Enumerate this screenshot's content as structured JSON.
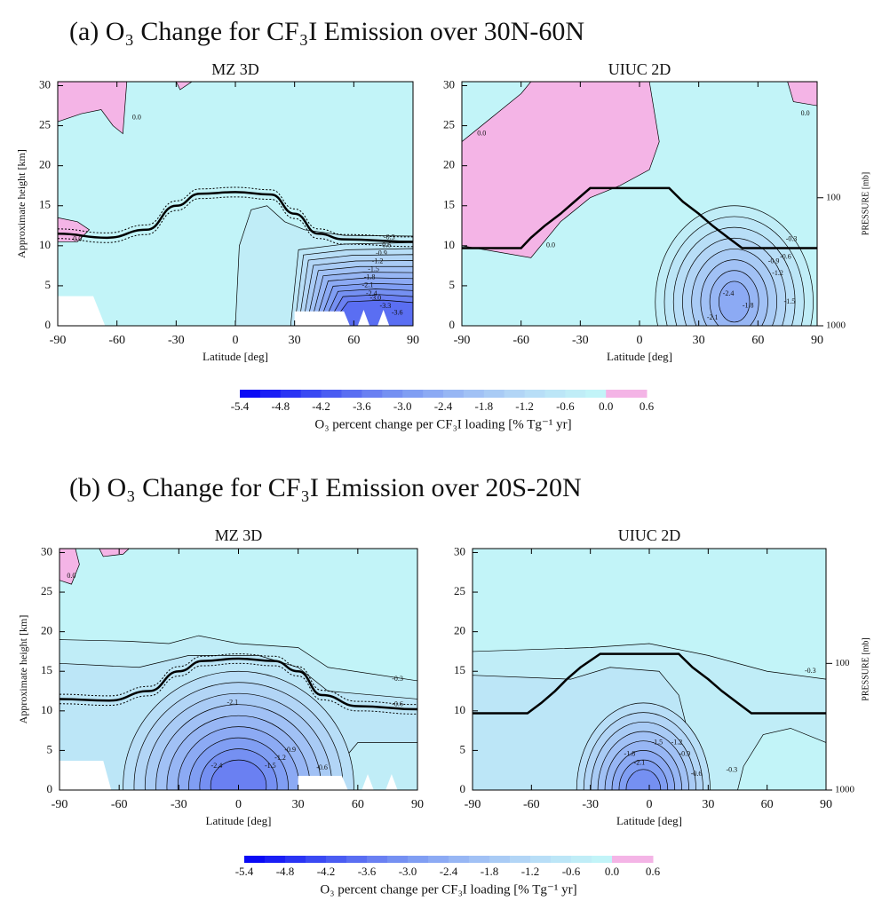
{
  "sections": [
    {
      "title": "(a) O₃ Change for CF₃I Emission over 30N-60N",
      "colorbar": {
        "lim": [
          -5.4,
          0.6
        ],
        "ticks": [
          -5.4,
          -4.8,
          -4.2,
          -3.6,
          {
            "value": -3,
            "label": "-3.0"
          },
          -2.4,
          -1.8,
          -1.2,
          -0.6,
          {
            "value": 0,
            "label": "0.0"
          },
          0.6
        ],
        "colors": [
          "#0a0af5",
          "#1a1ef5",
          "#2a34f4",
          "#3a49f3",
          "#4a5cf2",
          "#5a6ef2",
          "#6a80f2",
          "#7590f2",
          "#809ef3",
          "#8caaf4",
          "#97b6f4",
          "#a1c1f5",
          "#a9cbf5",
          "#b2d5f6",
          "#b8def7",
          "#bce6f7",
          "#c0edf7",
          "#c2f4f8",
          "#f4b4e6",
          "#f4b4e6"
        ],
        "label": "O₃ percent change per CF₃I loading [% Tg⁻¹ yr]"
      }
    },
    {
      "title": "(b) O₃ Change for CF₃I Emission over 20S-20N",
      "colorbar": {
        "lim": [
          -5.4,
          0.6
        ],
        "ticks": [
          -5.4,
          -4.8,
          -4.2,
          -3.6,
          {
            "value": -3,
            "label": "-3.0"
          },
          -2.4,
          -1.8,
          -1.2,
          -0.6,
          {
            "value": 0,
            "label": "0.0"
          },
          0.6
        ],
        "colors": [
          "#0a0af5",
          "#1a1ef5",
          "#2a34f4",
          "#3a49f3",
          "#4a5cf2",
          "#5a6ef2",
          "#6a80f2",
          "#7590f2",
          "#809ef3",
          "#8caaf4",
          "#97b6f4",
          "#a1c1f5",
          "#a9cbf5",
          "#b2d5f6",
          "#b8def7",
          "#bce6f7",
          "#c0edf7",
          "#c2f4f8",
          "#f4b4e6",
          "#f4b4e6"
        ],
        "label": "O₃ percent change per CF₃I loading [% Tg⁻¹ yr]"
      }
    }
  ],
  "chart_data": [
    {
      "type": "contour",
      "title": "MZ 3D",
      "xlabel": "Latitude [deg]",
      "ylabel": "Approximate height [km]",
      "xlim": [
        -90,
        90
      ],
      "xticks": [
        -90,
        -60,
        -30,
        0,
        30,
        60,
        90
      ],
      "ylim": [
        0,
        30.5
      ],
      "yticks": [
        0,
        5,
        10,
        15,
        20,
        25,
        30
      ],
      "contour_labels": [
        "0.0",
        "0.0",
        "-0.3",
        "-0.6",
        "-0.9",
        "-1.2",
        "-1.5",
        "-1.8",
        "-2.1",
        "-2.4",
        "-3.0",
        "-3.3",
        "-3.6"
      ]
    },
    {
      "type": "contour",
      "title": "UIUC 2D",
      "xlabel": "Latitude [deg]",
      "y2label": "PRESSURE [mb]",
      "xlim": [
        -90,
        90
      ],
      "xticks": [
        -90,
        -60,
        -30,
        0,
        30,
        60,
        90
      ],
      "ylim": [
        0,
        30.5
      ],
      "yticks": [
        0,
        5,
        10,
        15,
        20,
        25,
        30
      ],
      "y2lim": [
        1000,
        12.4
      ],
      "y2scale": "log",
      "y2ticks": [
        100,
        1000
      ],
      "contour_labels": [
        "0.0",
        "0.0",
        "0.0",
        "-0.3",
        "-0.6",
        "-0.9",
        "-1.2",
        "-1.5",
        "-1.8",
        "-2.1",
        "-2.4"
      ]
    },
    {
      "type": "contour",
      "title": "MZ 3D",
      "xlabel": "Latitude [deg]",
      "ylabel": "Approximate height [km]",
      "xlim": [
        -90,
        90
      ],
      "xticks": [
        -90,
        -60,
        -30,
        0,
        30,
        60,
        90
      ],
      "ylim": [
        0,
        30.5
      ],
      "yticks": [
        0,
        5,
        10,
        15,
        20,
        25,
        30
      ],
      "contour_labels": [
        "0.0",
        "-0.3",
        "-0.6",
        "-0.6",
        "-2.1",
        "-0.9",
        "-1.2",
        "-1.5",
        "-2.4"
      ]
    },
    {
      "type": "contour",
      "title": "UIUC 2D",
      "xlabel": "Latitude [deg]",
      "y2label": "PRESSURE [mb]",
      "xlim": [
        -90,
        90
      ],
      "xticks": [
        -90,
        -60,
        -30,
        0,
        30,
        60,
        90
      ],
      "ylim": [
        0,
        30.5
      ],
      "yticks": [
        0,
        5,
        10,
        15,
        20,
        25,
        30
      ],
      "y2lim": [
        1000,
        12.4
      ],
      "y2scale": "log",
      "y2ticks": [
        100,
        1000
      ],
      "contour_labels": [
        "-0.3",
        "-0.3",
        "-0.6",
        "-1.5",
        "-1.8",
        "-2.1",
        "-1.2",
        "-0.9"
      ]
    }
  ]
}
